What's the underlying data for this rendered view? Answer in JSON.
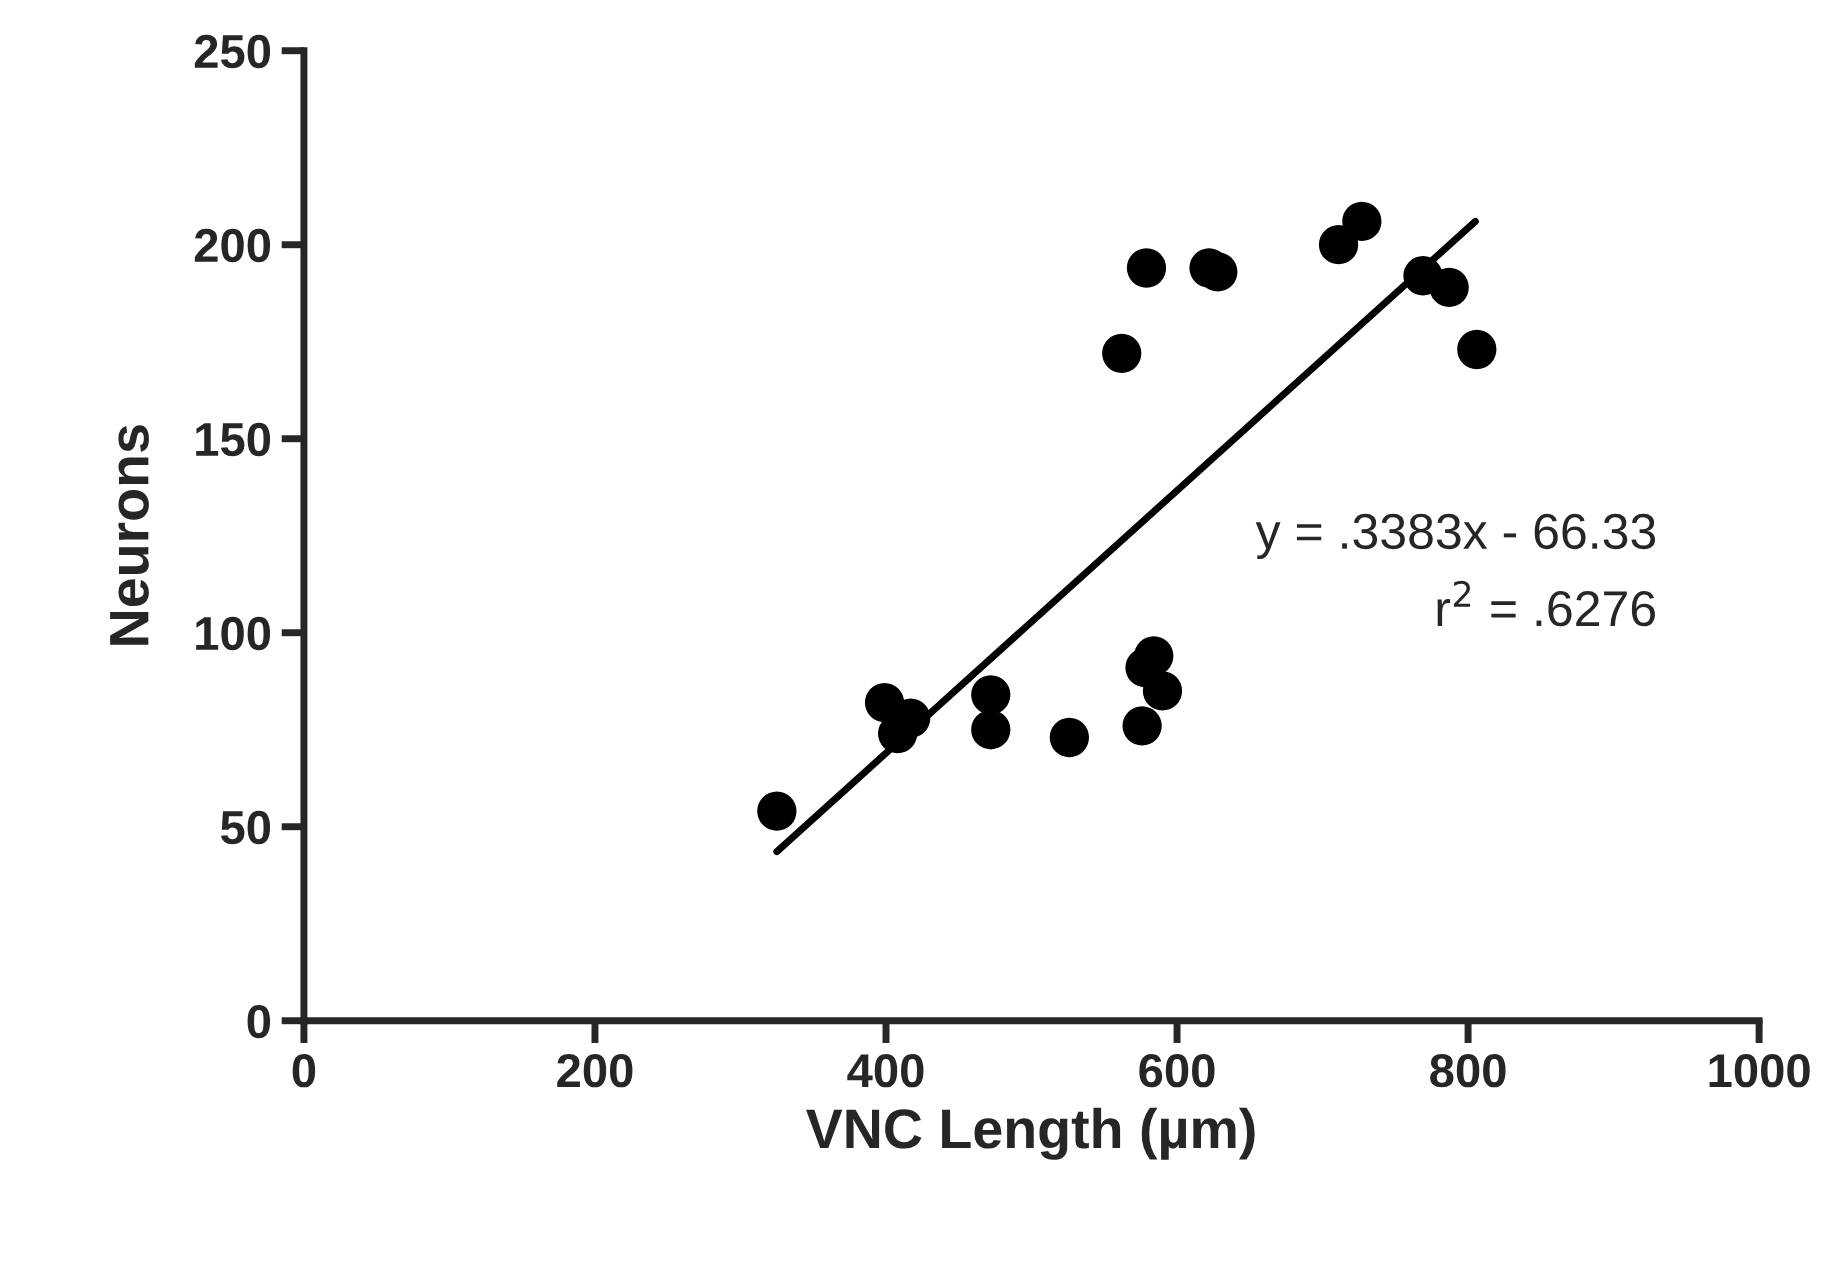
{
  "chart_data": {
    "type": "scatter",
    "xlabel": "VNC Length (µm)",
    "ylabel": "Neurons",
    "xlim": [
      0,
      1000
    ],
    "xticks": [
      0,
      200,
      400,
      600,
      800,
      1000
    ],
    "ylim": [
      0,
      250
    ],
    "yticks": [
      0,
      50,
      100,
      150,
      200,
      250
    ],
    "grid": false,
    "legend": false,
    "series": [
      {
        "marker": "circle",
        "color": "#000000",
        "x": [
          325,
          399,
          408,
          417,
          472,
          472,
          526,
          576,
          578,
          584,
          590,
          562,
          579,
          622,
          628,
          711,
          727,
          769,
          787,
          806
        ],
        "values": [
          54,
          82,
          74,
          78,
          84,
          75,
          73,
          76,
          91,
          94,
          85,
          172,
          194,
          194,
          193,
          200,
          206,
          192,
          189,
          173
        ]
      },
      {
        "type": "line",
        "marker": "none",
        "color": "#000000",
        "x": [
          325,
          805
        ],
        "values": [
          43.6,
          206
        ]
      }
    ],
    "annotations": [
      "y = .3383x - 66.33",
      "r$^{2}$ = .6276"
    ]
  }
}
